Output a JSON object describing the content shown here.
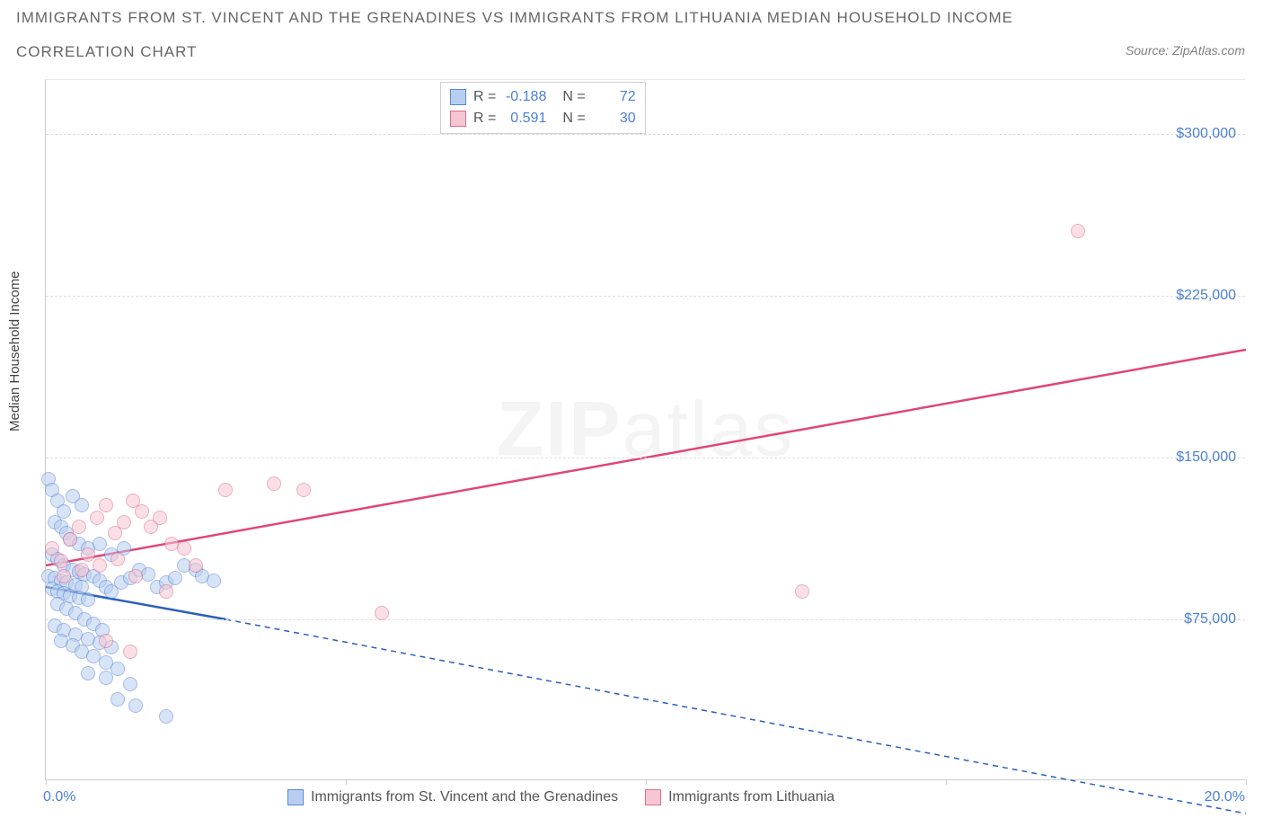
{
  "title": "IMMIGRANTS FROM ST. VINCENT AND THE GRENADINES VS IMMIGRANTS FROM LITHUANIA MEDIAN HOUSEHOLD INCOME",
  "subtitle": "CORRELATION CHART",
  "source_label": "Source: ZipAtlas.com",
  "y_axis_title": "Median Household Income",
  "watermark": {
    "bold": "ZIP",
    "rest": "atlas"
  },
  "chart": {
    "type": "scatter",
    "xlim": [
      0,
      20
    ],
    "ylim": [
      0,
      325000
    ],
    "x_ticks": [
      0,
      5,
      10,
      15,
      20
    ],
    "x_tick_labels": {
      "left": "0.0%",
      "right": "20.0%"
    },
    "y_ticks": [
      75000,
      150000,
      225000,
      300000
    ],
    "y_tick_labels": [
      "$75,000",
      "$150,000",
      "$225,000",
      "$300,000"
    ],
    "grid_color": "#dddddd",
    "background_color": "#ffffff",
    "point_radius": 8,
    "series": [
      {
        "name": "Immigrants from St. Vincent and the Grenadines",
        "short": "blue",
        "fill": "#b8cef0",
        "stroke": "#5a87d6",
        "fill_opacity": 0.55,
        "r": -0.188,
        "n": 72,
        "trend": {
          "x1": 0.0,
          "y1": 90000,
          "x2": 3.0,
          "y2": 75000,
          "dash_x2": 20.0,
          "dash_y2": -15000,
          "color": "#2b5fc0",
          "width": 2.5
        },
        "points": [
          [
            0.05,
            140000
          ],
          [
            0.1,
            135000
          ],
          [
            0.2,
            130000
          ],
          [
            0.3,
            125000
          ],
          [
            0.45,
            132000
          ],
          [
            0.6,
            128000
          ],
          [
            0.15,
            120000
          ],
          [
            0.25,
            118000
          ],
          [
            0.35,
            115000
          ],
          [
            0.4,
            112000
          ],
          [
            0.55,
            110000
          ],
          [
            0.7,
            108000
          ],
          [
            0.1,
            105000
          ],
          [
            0.2,
            103000
          ],
          [
            0.3,
            100000
          ],
          [
            0.45,
            98000
          ],
          [
            0.55,
            97000
          ],
          [
            0.65,
            96000
          ],
          [
            0.05,
            95000
          ],
          [
            0.15,
            94000
          ],
          [
            0.25,
            93000
          ],
          [
            0.35,
            92000
          ],
          [
            0.5,
            91000
          ],
          [
            0.6,
            90000
          ],
          [
            0.1,
            89000
          ],
          [
            0.2,
            88000
          ],
          [
            0.3,
            87000
          ],
          [
            0.4,
            86000
          ],
          [
            0.55,
            85000
          ],
          [
            0.7,
            84000
          ],
          [
            0.8,
            95000
          ],
          [
            0.9,
            93000
          ],
          [
            1.0,
            90000
          ],
          [
            1.1,
            88000
          ],
          [
            1.25,
            92000
          ],
          [
            1.4,
            94000
          ],
          [
            1.55,
            98000
          ],
          [
            1.7,
            96000
          ],
          [
            1.85,
            90000
          ],
          [
            2.0,
            92000
          ],
          [
            2.15,
            94000
          ],
          [
            2.3,
            100000
          ],
          [
            2.5,
            98000
          ],
          [
            2.6,
            95000
          ],
          [
            2.8,
            93000
          ],
          [
            0.9,
            110000
          ],
          [
            1.1,
            105000
          ],
          [
            1.3,
            108000
          ],
          [
            0.2,
            82000
          ],
          [
            0.35,
            80000
          ],
          [
            0.5,
            78000
          ],
          [
            0.65,
            75000
          ],
          [
            0.8,
            73000
          ],
          [
            0.95,
            70000
          ],
          [
            0.15,
            72000
          ],
          [
            0.3,
            70000
          ],
          [
            0.5,
            68000
          ],
          [
            0.7,
            66000
          ],
          [
            0.9,
            64000
          ],
          [
            1.1,
            62000
          ],
          [
            0.25,
            65000
          ],
          [
            0.45,
            63000
          ],
          [
            0.6,
            60000
          ],
          [
            0.8,
            58000
          ],
          [
            1.0,
            55000
          ],
          [
            1.2,
            52000
          ],
          [
            0.7,
            50000
          ],
          [
            1.0,
            48000
          ],
          [
            1.4,
            45000
          ],
          [
            1.2,
            38000
          ],
          [
            1.5,
            35000
          ],
          [
            2.0,
            30000
          ]
        ]
      },
      {
        "name": "Immigrants from Lithuania",
        "short": "pink",
        "fill": "#f6c6d3",
        "stroke": "#e06a8c",
        "fill_opacity": 0.55,
        "r": 0.591,
        "n": 30,
        "trend": {
          "x1": 0.0,
          "y1": 100000,
          "x2": 20.0,
          "y2": 200000,
          "color": "#e0457a",
          "width": 2.5
        },
        "points": [
          [
            0.1,
            108000
          ],
          [
            0.25,
            102000
          ],
          [
            0.4,
            112000
          ],
          [
            0.55,
            118000
          ],
          [
            0.7,
            105000
          ],
          [
            0.85,
            122000
          ],
          [
            1.0,
            128000
          ],
          [
            1.15,
            115000
          ],
          [
            1.3,
            120000
          ],
          [
            1.45,
            130000
          ],
          [
            1.6,
            125000
          ],
          [
            1.75,
            118000
          ],
          [
            1.9,
            122000
          ],
          [
            2.1,
            110000
          ],
          [
            2.3,
            108000
          ],
          [
            0.3,
            95000
          ],
          [
            0.6,
            98000
          ],
          [
            0.9,
            100000
          ],
          [
            1.2,
            103000
          ],
          [
            1.5,
            95000
          ],
          [
            2.0,
            88000
          ],
          [
            2.5,
            100000
          ],
          [
            1.0,
            65000
          ],
          [
            1.4,
            60000
          ],
          [
            3.0,
            135000
          ],
          [
            3.8,
            138000
          ],
          [
            4.3,
            135000
          ],
          [
            5.6,
            78000
          ],
          [
            12.6,
            88000
          ],
          [
            17.2,
            255000
          ]
        ]
      }
    ]
  },
  "legend": {
    "r_label": "R =",
    "n_label": "N ="
  },
  "bottom_legend": [
    {
      "swatch_fill": "#b8cef0",
      "swatch_stroke": "#5a87d6",
      "label": "Immigrants from St. Vincent and the Grenadines"
    },
    {
      "swatch_fill": "#f6c6d3",
      "swatch_stroke": "#e06a8c",
      "label": "Immigrants from Lithuania"
    }
  ]
}
